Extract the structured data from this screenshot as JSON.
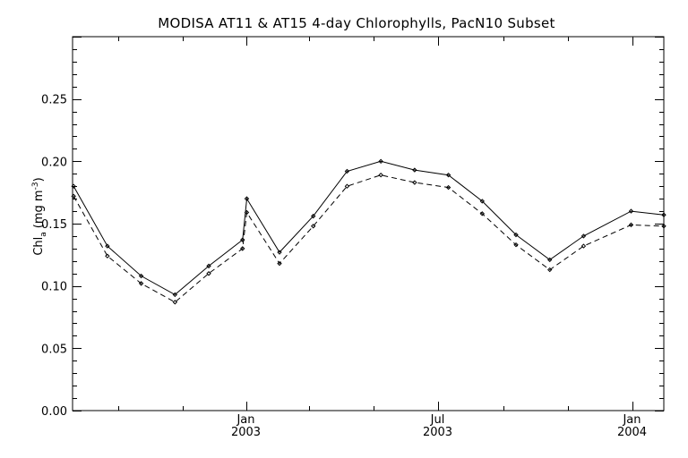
{
  "chart_data": {
    "type": "line",
    "title": "MODISA AT11 & AT15 4-day Chlorophylls, PacN10 Subset",
    "ylabel": "Chl_a (mg m^-3)",
    "ylabel_parts": {
      "main": "Chl",
      "sub": "a",
      "unit_open": "(mg m",
      "sup": "-3",
      "unit_close": ")"
    },
    "xlabel": "",
    "ylim": [
      0,
      0.3
    ],
    "xlim": [
      "2002-07-20",
      "2004-01-31"
    ],
    "y_ticks": [
      "0.00",
      "0.05",
      "0.10",
      "0.15",
      "0.20",
      "0.25"
    ],
    "x_ticks": [
      {
        "date": "2003-01-01",
        "month": "Jan",
        "year": "2003"
      },
      {
        "date": "2003-07-01",
        "month": "Jul",
        "year": "2003"
      },
      {
        "date": "2004-01-01",
        "month": "Jan",
        "year": "2004"
      }
    ],
    "x_minor_ticks": [
      "2002-09-01",
      "2002-11-01",
      "2003-03-01",
      "2003-05-01",
      "2003-09-01",
      "2003-11-01"
    ],
    "grid": false,
    "series": [
      {
        "style": "solid",
        "color": "#000000",
        "points": [
          {
            "x": "2002-07-21",
            "y": 0.18
          },
          {
            "x": "2002-08-22",
            "y": 0.132
          },
          {
            "x": "2002-09-23",
            "y": 0.108
          },
          {
            "x": "2002-10-25",
            "y": 0.093
          },
          {
            "x": "2002-11-26",
            "y": 0.116
          },
          {
            "x": "2002-12-28",
            "y": 0.137
          },
          {
            "x": "2003-01-01",
            "y": 0.17
          },
          {
            "x": "2003-02-01",
            "y": 0.127
          },
          {
            "x": "2003-03-05",
            "y": 0.156
          },
          {
            "x": "2003-04-06",
            "y": 0.192
          },
          {
            "x": "2003-05-08",
            "y": 0.2
          },
          {
            "x": "2003-06-09",
            "y": 0.193
          },
          {
            "x": "2003-07-11",
            "y": 0.189
          },
          {
            "x": "2003-08-12",
            "y": 0.168
          },
          {
            "x": "2003-09-13",
            "y": 0.141
          },
          {
            "x": "2003-10-15",
            "y": 0.121
          },
          {
            "x": "2003-11-16",
            "y": 0.14
          },
          {
            "x": "2003-12-31",
            "y": 0.16
          },
          {
            "x": "2004-01-31",
            "y": 0.157
          }
        ]
      },
      {
        "style": "dashed",
        "color": "#000000",
        "points": [
          {
            "x": "2002-07-21",
            "y": 0.172
          },
          {
            "x": "2002-08-22",
            "y": 0.124
          },
          {
            "x": "2002-09-23",
            "y": 0.102
          },
          {
            "x": "2002-10-25",
            "y": 0.087
          },
          {
            "x": "2002-11-26",
            "y": 0.11
          },
          {
            "x": "2002-12-28",
            "y": 0.13
          },
          {
            "x": "2003-01-01",
            "y": 0.159
          },
          {
            "x": "2003-02-01",
            "y": 0.118
          },
          {
            "x": "2003-03-05",
            "y": 0.148
          },
          {
            "x": "2003-04-06",
            "y": 0.18
          },
          {
            "x": "2003-05-08",
            "y": 0.189
          },
          {
            "x": "2003-06-09",
            "y": 0.183
          },
          {
            "x": "2003-07-11",
            "y": 0.179
          },
          {
            "x": "2003-08-12",
            "y": 0.158
          },
          {
            "x": "2003-09-13",
            "y": 0.133
          },
          {
            "x": "2003-10-15",
            "y": 0.113
          },
          {
            "x": "2003-11-16",
            "y": 0.132
          },
          {
            "x": "2003-12-31",
            "y": 0.149
          },
          {
            "x": "2004-01-31",
            "y": 0.148
          }
        ]
      }
    ]
  }
}
